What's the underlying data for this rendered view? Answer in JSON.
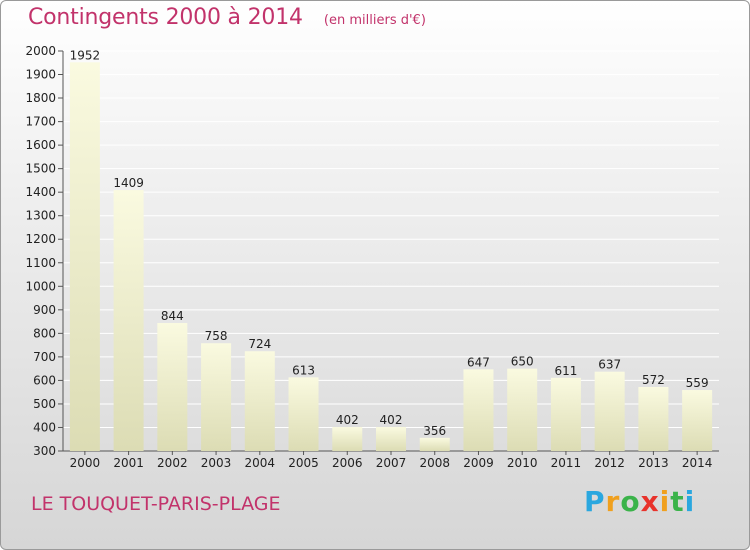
{
  "header": {
    "title": "Contingents 2000 à 2014",
    "subtitle": "(en milliers d'€)"
  },
  "footer": {
    "location": "LE TOUQUET-PARIS-PLAGE"
  },
  "logo": {
    "text": "Proxiti",
    "letters": [
      {
        "ch": "P",
        "color": "#2aa7df"
      },
      {
        "ch": "r",
        "color": "#f0a01e"
      },
      {
        "ch": "o",
        "color": "#3bb34a"
      },
      {
        "ch": "x",
        "color": "#e8322b"
      },
      {
        "ch": "i",
        "color": "#f0a01e"
      },
      {
        "ch": "t",
        "color": "#3bb34a"
      },
      {
        "ch": "i",
        "color": "#2aa7df"
      }
    ]
  },
  "colors": {
    "title": "#c2336b",
    "bar_top": "#fafae0",
    "bar_bottom": "#dcdcb4"
  },
  "chart_data": {
    "type": "bar",
    "title": "Contingents 2000 à 2014",
    "subtitle": "(en milliers d'€)",
    "categories": [
      "2000",
      "2001",
      "2002",
      "2003",
      "2004",
      "2005",
      "2006",
      "2007",
      "2008",
      "2009",
      "2010",
      "2011",
      "2012",
      "2013",
      "2014"
    ],
    "values": [
      1952,
      1409,
      844,
      758,
      724,
      613,
      402,
      402,
      356,
      647,
      650,
      611,
      637,
      572,
      559
    ],
    "ylim": [
      300,
      2000
    ],
    "yticks": [
      300,
      400,
      500,
      600,
      700,
      800,
      900,
      1000,
      1100,
      1200,
      1300,
      1400,
      1500,
      1600,
      1700,
      1800,
      1900,
      2000
    ],
    "grid": true
  }
}
